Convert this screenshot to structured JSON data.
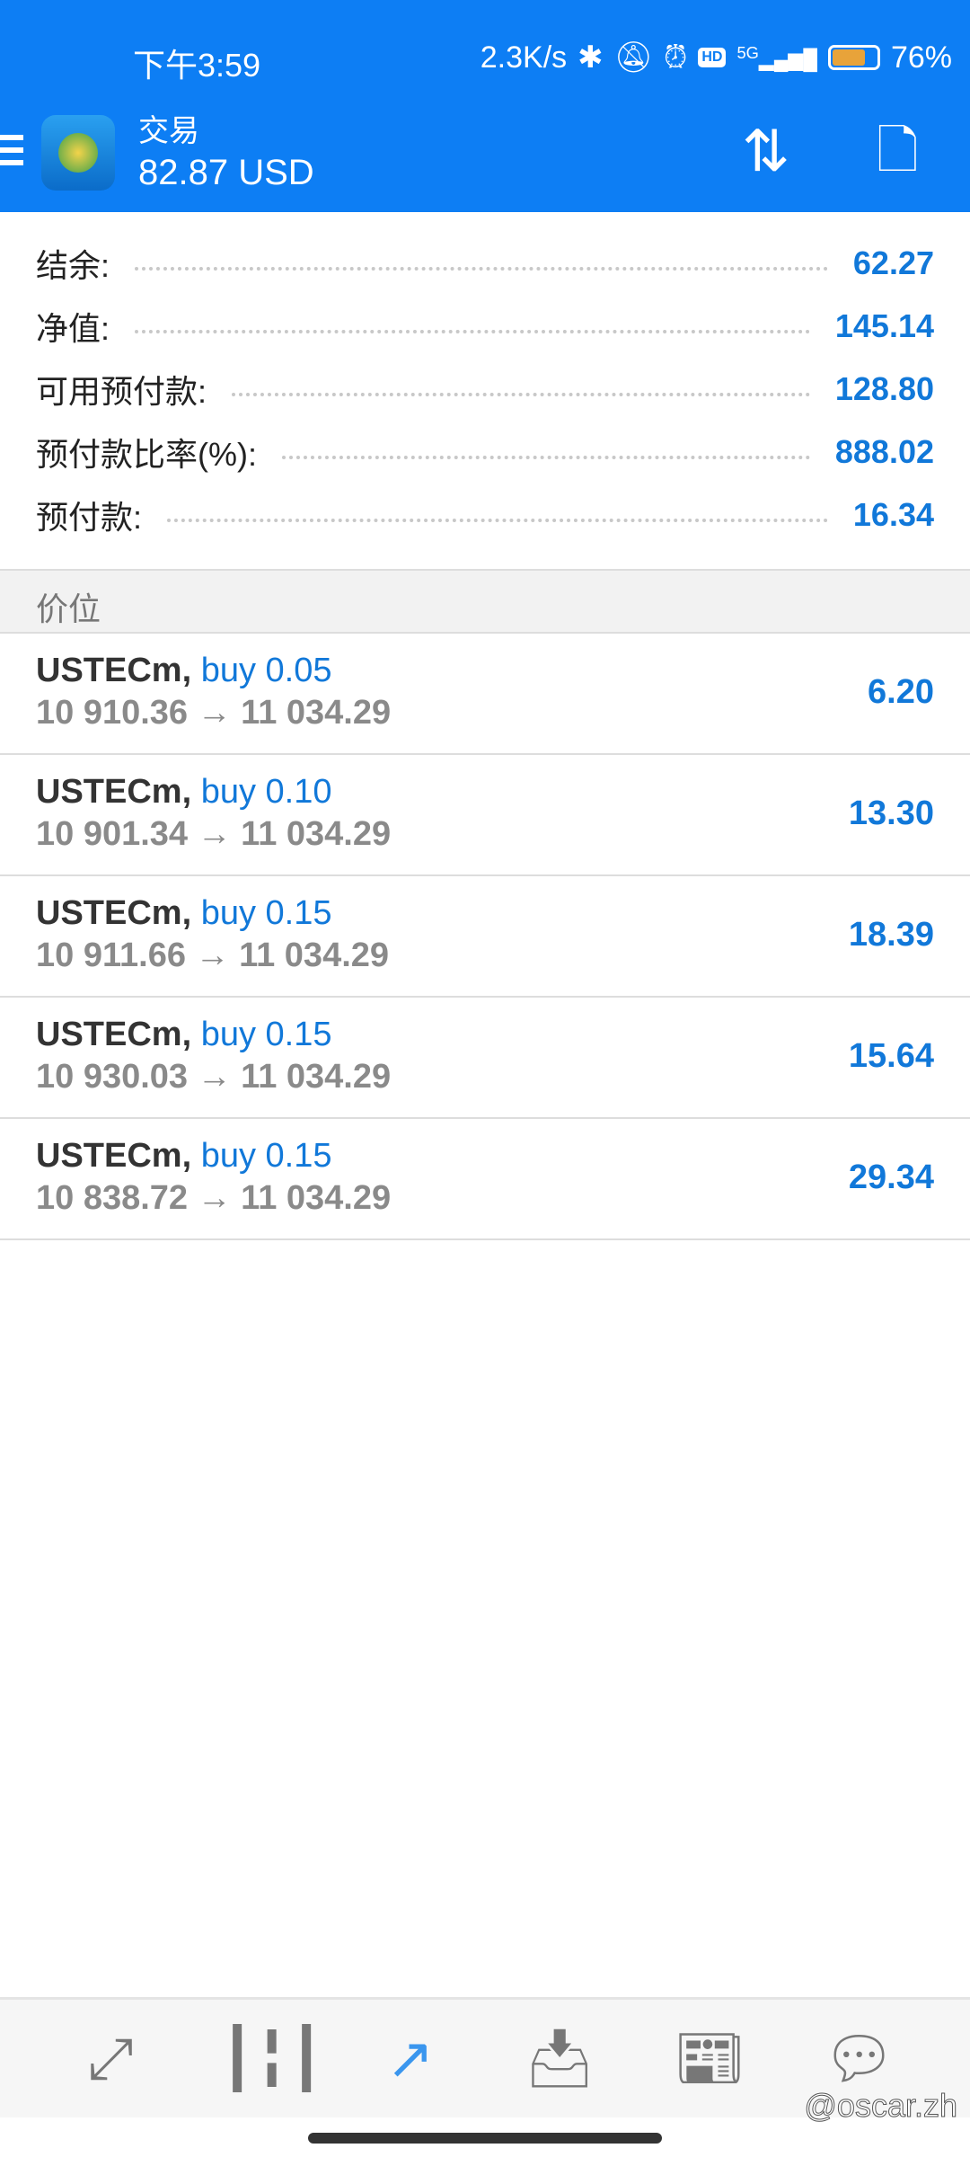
{
  "status_bar": {
    "time": "下午3:59",
    "net_speed": "2.3K/s",
    "network": "5G",
    "battery": "76%",
    "icons": [
      "bluetooth-icon",
      "mute-icon",
      "alarm-icon",
      "hd-icon",
      "signal-icon",
      "battery-icon"
    ]
  },
  "header": {
    "title": "交易",
    "balance": "82.87 USD",
    "icons": [
      "menu-icon",
      "app-logo",
      "sort-icon",
      "new-order-icon"
    ]
  },
  "summary": [
    {
      "label": "结余:",
      "value": "62.27"
    },
    {
      "label": "净值:",
      "value": "145.14"
    },
    {
      "label": "可用预付款:",
      "value": "128.80"
    },
    {
      "label": "预付款比率(%):",
      "value": "888.02"
    },
    {
      "label": "预付款:",
      "value": "16.34"
    }
  ],
  "section_title": "价位",
  "positions": [
    {
      "symbol": "USTECm,",
      "side": "buy 0.05",
      "prices": "10 910.36 → 11 034.29",
      "profit": "6.20"
    },
    {
      "symbol": "USTECm,",
      "side": "buy 0.10",
      "prices": "10 901.34 → 11 034.29",
      "profit": "13.30"
    },
    {
      "symbol": "USTECm,",
      "side": "buy 0.15",
      "prices": "10 911.66 → 11 034.29",
      "profit": "18.39"
    },
    {
      "symbol": "USTECm,",
      "side": "buy 0.15",
      "prices": "10 930.03 → 11 034.29",
      "profit": "15.64"
    },
    {
      "symbol": "USTECm,",
      "side": "buy 0.15",
      "prices": "10 838.72 → 11 034.29",
      "profit": "29.34"
    }
  ],
  "bottom_nav": {
    "items": [
      "quotes-icon",
      "chart-icon",
      "trade-icon",
      "inbox-icon",
      "news-icon",
      "chat-icon"
    ],
    "active": "trade-icon",
    "active_color": "#3a96ee"
  },
  "watermark": "@oscar.zh",
  "colors": {
    "header": "#0d7ef4",
    "value": "#1178d9"
  }
}
